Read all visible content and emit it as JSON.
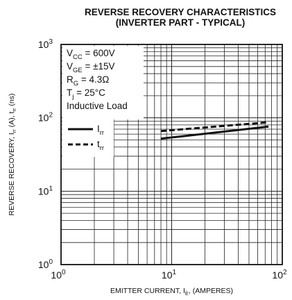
{
  "chart_data": {
    "type": "line",
    "title": "REVERSE RECOVERY CHARACTERISTICS",
    "subtitle": "(INVERTER PART - TYPICAL)",
    "xlabel": {
      "pre": "EMITTER CURRENT, I",
      "sub": "E",
      "post": ", (AMPERES)"
    },
    "ylabel": {
      "p1": "REVERSE RECOVERY, I",
      "s1": "rr",
      "p2": " (A), t",
      "s2": "rr",
      "p3": " (ns)"
    },
    "x_scale": "log",
    "y_scale": "log",
    "xlim": [
      1,
      100
    ],
    "ylim": [
      1,
      1000
    ],
    "x_ticks": [
      {
        "base": "10",
        "exp": "0"
      },
      {
        "base": "10",
        "exp": "1"
      },
      {
        "base": "10",
        "exp": "2"
      }
    ],
    "y_ticks": [
      {
        "base": "10",
        "exp": "0"
      },
      {
        "base": "10",
        "exp": "1"
      },
      {
        "base": "10",
        "exp": "2"
      },
      {
        "base": "10",
        "exp": "3"
      }
    ],
    "grid": true,
    "legend": {
      "placement": "top-left",
      "conditions": [
        {
          "pre": "V",
          "sub": "CC",
          "post": " = 600V"
        },
        {
          "pre": "V",
          "sub": "GE",
          "post": " = ±15V"
        },
        {
          "pre": "R",
          "sub": "G",
          "post": " = 4.3Ω"
        },
        {
          "pre": "T",
          "sub": "j",
          "post": " = 25°C"
        },
        {
          "pre": "Inductive Load",
          "sub": "",
          "post": ""
        }
      ],
      "entries": [
        {
          "pre": "I",
          "sub": "rr",
          "style": "solid"
        },
        {
          "pre": "t",
          "sub": "rr",
          "style": "dashed"
        }
      ]
    },
    "series": [
      {
        "style": "solid",
        "x": [
          8,
          75
        ],
        "y": [
          52,
          76
        ]
      },
      {
        "style": "dashed",
        "x": [
          8,
          75
        ],
        "y": [
          66,
          87
        ]
      }
    ]
  }
}
